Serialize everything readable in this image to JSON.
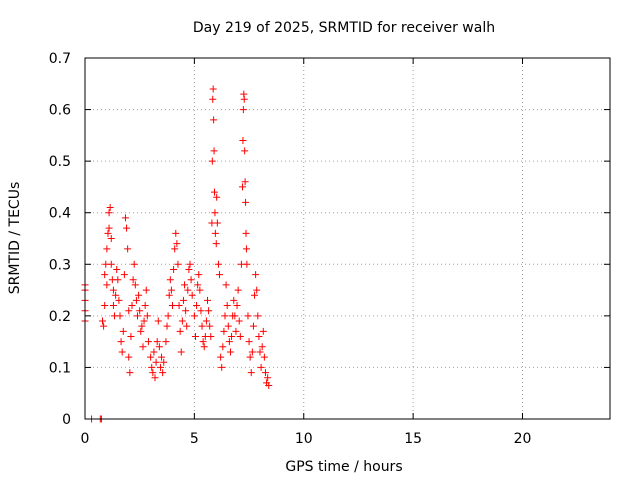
{
  "chart_data": {
    "type": "scatter",
    "title": "Day 219 of 2025, SRMTID for receiver walh",
    "xlabel": "GPS time / hours",
    "ylabel": "SRMTID / TECUs",
    "xlim": [
      0,
      24
    ],
    "ylim": [
      0,
      0.7
    ],
    "xticks": [
      0,
      5,
      10,
      15,
      20
    ],
    "yticks": [
      0,
      0.1,
      0.2,
      0.3,
      0.4,
      0.5,
      0.6,
      0.7
    ],
    "xtick_labels": [
      "0",
      "5",
      "10",
      "15",
      "20"
    ],
    "ytick_labels": [
      "0",
      "0.1",
      "0.2",
      "0.3",
      "0.4",
      "0.5",
      "0.6",
      "0.7"
    ],
    "grid": true,
    "marker": "+",
    "series": [
      {
        "name": "SRMTID",
        "color": "#ff0000",
        "points": [
          [
            0.0,
            0.19
          ],
          [
            0.0,
            0.21
          ],
          [
            0.0,
            0.23
          ],
          [
            0.0,
            0.25
          ],
          [
            0.0,
            0.26
          ],
          [
            0.3,
            0.0
          ],
          [
            0.7,
            0.0
          ],
          [
            0.75,
            0.0
          ],
          [
            0.8,
            0.19
          ],
          [
            0.85,
            0.18
          ],
          [
            0.9,
            0.22
          ],
          [
            0.9,
            0.28
          ],
          [
            0.95,
            0.3
          ],
          [
            1.0,
            0.26
          ],
          [
            1.0,
            0.33
          ],
          [
            1.05,
            0.36
          ],
          [
            1.1,
            0.4
          ],
          [
            1.1,
            0.37
          ],
          [
            1.15,
            0.41
          ],
          [
            1.2,
            0.35
          ],
          [
            1.2,
            0.3
          ],
          [
            1.25,
            0.27
          ],
          [
            1.3,
            0.25
          ],
          [
            1.3,
            0.22
          ],
          [
            1.35,
            0.2
          ],
          [
            1.4,
            0.24
          ],
          [
            1.45,
            0.29
          ],
          [
            1.5,
            0.27
          ],
          [
            1.55,
            0.23
          ],
          [
            1.6,
            0.2
          ],
          [
            1.65,
            0.15
          ],
          [
            1.7,
            0.13
          ],
          [
            1.75,
            0.17
          ],
          [
            1.8,
            0.28
          ],
          [
            1.85,
            0.39
          ],
          [
            1.9,
            0.37
          ],
          [
            1.95,
            0.33
          ],
          [
            2.0,
            0.21
          ],
          [
            2.0,
            0.12
          ],
          [
            2.05,
            0.09
          ],
          [
            2.1,
            0.16
          ],
          [
            2.15,
            0.22
          ],
          [
            2.2,
            0.27
          ],
          [
            2.25,
            0.3
          ],
          [
            2.3,
            0.26
          ],
          [
            2.35,
            0.23
          ],
          [
            2.4,
            0.2
          ],
          [
            2.45,
            0.24
          ],
          [
            2.5,
            0.21
          ],
          [
            2.55,
            0.17
          ],
          [
            2.6,
            0.18
          ],
          [
            2.65,
            0.14
          ],
          [
            2.7,
            0.19
          ],
          [
            2.75,
            0.22
          ],
          [
            2.8,
            0.25
          ],
          [
            2.85,
            0.2
          ],
          [
            2.9,
            0.15
          ],
          [
            3.0,
            0.12
          ],
          [
            3.05,
            0.1
          ],
          [
            3.1,
            0.09
          ],
          [
            3.15,
            0.13
          ],
          [
            3.2,
            0.08
          ],
          [
            3.25,
            0.11
          ],
          [
            3.3,
            0.15
          ],
          [
            3.35,
            0.19
          ],
          [
            3.4,
            0.14
          ],
          [
            3.45,
            0.1
          ],
          [
            3.5,
            0.12
          ],
          [
            3.55,
            0.09
          ],
          [
            3.6,
            0.11
          ],
          [
            3.7,
            0.15
          ],
          [
            3.75,
            0.18
          ],
          [
            3.8,
            0.2
          ],
          [
            3.85,
            0.24
          ],
          [
            3.9,
            0.27
          ],
          [
            3.95,
            0.25
          ],
          [
            4.0,
            0.22
          ],
          [
            4.05,
            0.29
          ],
          [
            4.1,
            0.33
          ],
          [
            4.15,
            0.36
          ],
          [
            4.2,
            0.34
          ],
          [
            4.25,
            0.3
          ],
          [
            4.3,
            0.22
          ],
          [
            4.35,
            0.17
          ],
          [
            4.4,
            0.13
          ],
          [
            4.45,
            0.19
          ],
          [
            4.5,
            0.23
          ],
          [
            4.55,
            0.26
          ],
          [
            4.6,
            0.21
          ],
          [
            4.65,
            0.18
          ],
          [
            4.7,
            0.25
          ],
          [
            4.75,
            0.29
          ],
          [
            4.8,
            0.3
          ],
          [
            4.85,
            0.27
          ],
          [
            4.9,
            0.24
          ],
          [
            5.0,
            0.2
          ],
          [
            5.05,
            0.16
          ],
          [
            5.1,
            0.22
          ],
          [
            5.15,
            0.26
          ],
          [
            5.2,
            0.28
          ],
          [
            5.25,
            0.25
          ],
          [
            5.3,
            0.21
          ],
          [
            5.35,
            0.18
          ],
          [
            5.4,
            0.15
          ],
          [
            5.45,
            0.14
          ],
          [
            5.5,
            0.16
          ],
          [
            5.55,
            0.19
          ],
          [
            5.6,
            0.23
          ],
          [
            5.65,
            0.21
          ],
          [
            5.7,
            0.18
          ],
          [
            5.75,
            0.16
          ],
          [
            5.8,
            0.38
          ],
          [
            5.82,
            0.5
          ],
          [
            5.84,
            0.62
          ],
          [
            5.86,
            0.64
          ],
          [
            5.88,
            0.58
          ],
          [
            5.9,
            0.52
          ],
          [
            5.92,
            0.44
          ],
          [
            5.94,
            0.4
          ],
          [
            5.96,
            0.36
          ],
          [
            6.0,
            0.34
          ],
          [
            6.02,
            0.43
          ],
          [
            6.05,
            0.38
          ],
          [
            6.1,
            0.3
          ],
          [
            6.15,
            0.28
          ],
          [
            6.2,
            0.12
          ],
          [
            6.25,
            0.1
          ],
          [
            6.3,
            0.14
          ],
          [
            6.35,
            0.17
          ],
          [
            6.4,
            0.2
          ],
          [
            6.45,
            0.26
          ],
          [
            6.5,
            0.22
          ],
          [
            6.55,
            0.18
          ],
          [
            6.6,
            0.15
          ],
          [
            6.65,
            0.13
          ],
          [
            6.7,
            0.16
          ],
          [
            6.75,
            0.2
          ],
          [
            6.8,
            0.23
          ],
          [
            6.85,
            0.2
          ],
          [
            6.9,
            0.17
          ],
          [
            6.95,
            0.22
          ],
          [
            7.0,
            0.25
          ],
          [
            7.05,
            0.19
          ],
          [
            7.1,
            0.16
          ],
          [
            7.15,
            0.3
          ],
          [
            7.2,
            0.45
          ],
          [
            7.22,
            0.54
          ],
          [
            7.24,
            0.6
          ],
          [
            7.26,
            0.63
          ],
          [
            7.28,
            0.62
          ],
          [
            7.3,
            0.52
          ],
          [
            7.32,
            0.46
          ],
          [
            7.34,
            0.42
          ],
          [
            7.36,
            0.36
          ],
          [
            7.38,
            0.33
          ],
          [
            7.4,
            0.3
          ],
          [
            7.45,
            0.2
          ],
          [
            7.5,
            0.15
          ],
          [
            7.55,
            0.12
          ],
          [
            7.6,
            0.09
          ],
          [
            7.65,
            0.13
          ],
          [
            7.7,
            0.18
          ],
          [
            7.75,
            0.24
          ],
          [
            7.8,
            0.28
          ],
          [
            7.85,
            0.25
          ],
          [
            7.9,
            0.2
          ],
          [
            7.95,
            0.16
          ],
          [
            8.0,
            0.13
          ],
          [
            8.05,
            0.1
          ],
          [
            8.1,
            0.14
          ],
          [
            8.15,
            0.17
          ],
          [
            8.2,
            0.12
          ],
          [
            8.25,
            0.09
          ],
          [
            8.3,
            0.07
          ],
          [
            8.35,
            0.08
          ],
          [
            8.4,
            0.065
          ]
        ]
      }
    ]
  }
}
